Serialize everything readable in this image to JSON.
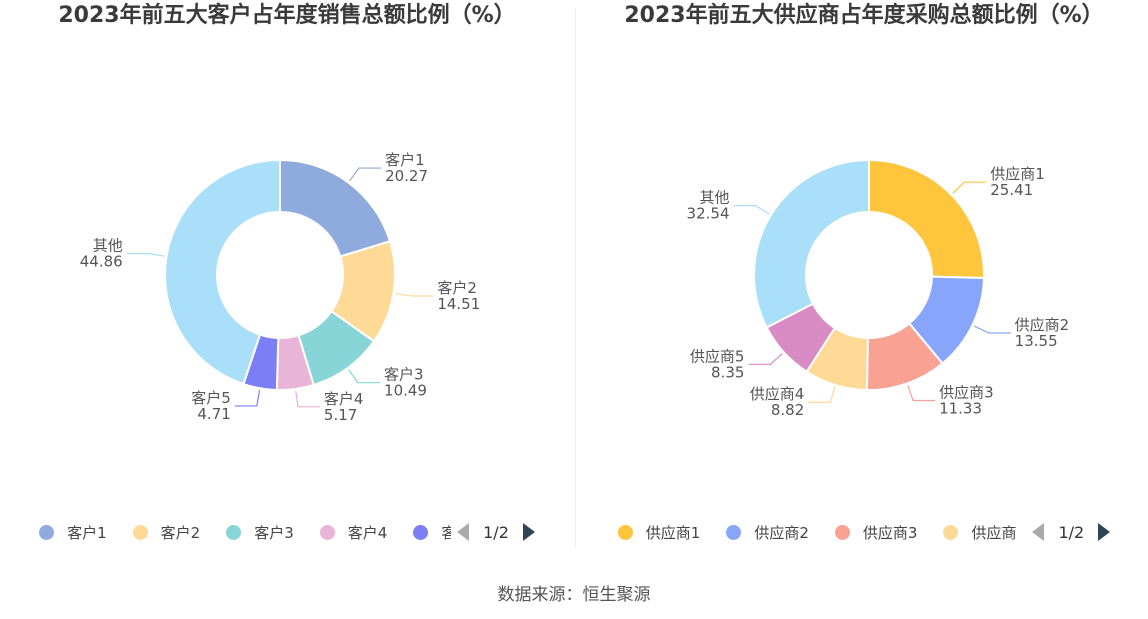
{
  "source": "数据来源：恒生聚源",
  "chart_data": [
    {
      "type": "pie",
      "variant": "donut",
      "title": "2023年前五大客户占年度销售总额比例（%）",
      "slices": [
        {
          "name": "客户1",
          "label": "客户1",
          "value": 20.27,
          "value_label": "20.27",
          "color": "#8faadc"
        },
        {
          "name": "客户2",
          "label": "客户2",
          "value": 14.51,
          "value_label": "14.51",
          "color": "#ffd996"
        },
        {
          "name": "客户3",
          "label": "客户3",
          "value": 10.49,
          "value_label": "10.49",
          "color": "#88d5d8"
        },
        {
          "name": "客户4",
          "label": "客户4",
          "value": 5.17,
          "value_label": "5.17",
          "color": "#e8b4d8"
        },
        {
          "name": "客户5",
          "label": "客户5",
          "value": 4.71,
          "value_label": "4.71",
          "color": "#7b7ef5"
        },
        {
          "name": "其他",
          "label": "其他",
          "value": 44.86,
          "value_label": "44.86",
          "color": "#aadff9"
        }
      ],
      "legend": {
        "placement": "bottom",
        "items": [
          {
            "label": "客户1",
            "color": "#8faadc"
          },
          {
            "label": "客户2",
            "color": "#ffd996"
          },
          {
            "label": "客户3",
            "color": "#88d5d8"
          },
          {
            "label": "客户4",
            "color": "#e8b4d8"
          },
          {
            "label": "客",
            "color": "#7b7ef5"
          }
        ],
        "page": "1/2"
      }
    },
    {
      "type": "pie",
      "variant": "donut",
      "title": "2023年前五大供应商占年度采购总额比例（%）",
      "slices": [
        {
          "name": "供应商1",
          "label": "供应商1",
          "value": 25.41,
          "value_label": "25.41",
          "color": "#ffc53d"
        },
        {
          "name": "供应商2",
          "label": "供应商2",
          "value": 13.55,
          "value_label": "13.55",
          "color": "#87a6fb"
        },
        {
          "name": "供应商3",
          "label": "供应商3",
          "value": 11.33,
          "value_label": "11.33",
          "color": "#f9a193"
        },
        {
          "name": "供应商4",
          "label": "供应商4",
          "value": 8.82,
          "value_label": "8.82",
          "color": "#ffd996"
        },
        {
          "name": "供应商5",
          "label": "供应商5",
          "value": 8.35,
          "value_label": "8.35",
          "color": "#d98cc4"
        },
        {
          "name": "其他",
          "label": "其他",
          "value": 32.54,
          "value_label": "32.54",
          "color": "#aadff9"
        }
      ],
      "legend": {
        "placement": "bottom",
        "items": [
          {
            "label": "供应商1",
            "color": "#ffc53d"
          },
          {
            "label": "供应商2",
            "color": "#87a6fb"
          },
          {
            "label": "供应商3",
            "color": "#f9a193"
          },
          {
            "label": "供应商",
            "color": "#ffd996"
          }
        ],
        "page": "1/2"
      }
    }
  ]
}
